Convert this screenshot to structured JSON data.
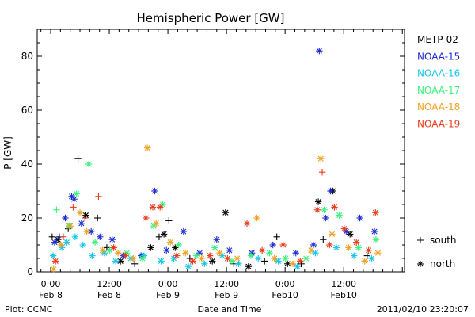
{
  "chart_data": {
    "type": "scatter",
    "title": "Hemispheric Power [GW]",
    "xlabel": "Date and Time",
    "ylabel": "P [GW]",
    "ylim": [
      0,
      90
    ],
    "yticks": [
      0,
      20,
      40,
      60,
      80
    ],
    "xlim_hours": [
      0,
      60
    ],
    "xticks": [
      {
        "h": 0,
        "line1": "0:00",
        "line2": "Feb 8"
      },
      {
        "h": 12,
        "line1": "12:00",
        "line2": "Feb 8"
      },
      {
        "h": 24,
        "line1": "0:00",
        "line2": "Feb 9"
      },
      {
        "h": 36,
        "line1": "12:00",
        "line2": "Feb 9"
      },
      {
        "h": 48,
        "line1": "0:00",
        "line2": "Feb10"
      },
      {
        "h": 60,
        "line1": "12:00",
        "line2": "Feb10"
      }
    ],
    "grid": false,
    "legend": "right",
    "markers": {
      "south": "+",
      "north": "*"
    },
    "marker_legend": [
      {
        "symbol": "+",
        "label": "south"
      },
      {
        "symbol": "*",
        "label": "north"
      }
    ],
    "series": [
      {
        "name": "METP-02",
        "color": "#000000",
        "points": [
          {
            "x": 0.3,
            "y": 13,
            "h": "south"
          },
          {
            "x": 1.5,
            "y": 12,
            "h": "north"
          },
          {
            "x": 3.6,
            "y": 16,
            "h": "south"
          },
          {
            "x": 5.6,
            "y": 42,
            "h": "south"
          },
          {
            "x": 7.2,
            "y": 21,
            "h": "north"
          },
          {
            "x": 9.6,
            "y": 20,
            "h": "south"
          },
          {
            "x": 11.5,
            "y": 9,
            "h": "south"
          },
          {
            "x": 14.3,
            "y": 4,
            "h": "north"
          },
          {
            "x": 17.2,
            "y": 3,
            "h": "south"
          },
          {
            "x": 20.5,
            "y": 9,
            "h": "north"
          },
          {
            "x": 22.2,
            "y": 13,
            "h": "south"
          },
          {
            "x": 23.2,
            "y": 14,
            "h": "north"
          },
          {
            "x": 24.2,
            "y": 19,
            "h": "south"
          },
          {
            "x": 25.5,
            "y": 9,
            "h": "north"
          },
          {
            "x": 28.5,
            "y": 5,
            "h": "south"
          },
          {
            "x": 33.1,
            "y": 4,
            "h": "north"
          },
          {
            "x": 35.8,
            "y": 22,
            "h": "north"
          },
          {
            "x": 37.5,
            "y": 3,
            "h": "south"
          },
          {
            "x": 40.5,
            "y": 2,
            "h": "north"
          },
          {
            "x": 43.8,
            "y": 4,
            "h": "south"
          },
          {
            "x": 46.3,
            "y": 13,
            "h": "south"
          },
          {
            "x": 48.5,
            "y": 3,
            "h": "north"
          },
          {
            "x": 51.3,
            "y": 3,
            "h": "south"
          },
          {
            "x": 54.8,
            "y": 26,
            "h": "north"
          },
          {
            "x": 55.8,
            "y": 12,
            "h": "south"
          },
          {
            "x": 57.8,
            "y": 30,
            "h": "north"
          },
          {
            "x": 61.3,
            "y": 14,
            "h": "north"
          },
          {
            "x": 64.8,
            "y": 6,
            "h": "south"
          }
        ]
      },
      {
        "name": "NOAA-15",
        "color": "#1c2bd0",
        "points": [
          {
            "x": 0.8,
            "y": 11,
            "h": "north"
          },
          {
            "x": 1.8,
            "y": 13,
            "h": "south"
          },
          {
            "x": 3.0,
            "y": 20,
            "h": "north"
          },
          {
            "x": 4.3,
            "y": 28,
            "h": "north"
          },
          {
            "x": 4.8,
            "y": 27,
            "h": "north"
          },
          {
            "x": 6.3,
            "y": 18,
            "h": "north"
          },
          {
            "x": 8.3,
            "y": 15,
            "h": "north"
          },
          {
            "x": 10.1,
            "y": 13,
            "h": "north"
          },
          {
            "x": 12.6,
            "y": 12,
            "h": "north"
          },
          {
            "x": 14.8,
            "y": 6,
            "h": "north"
          },
          {
            "x": 18.5,
            "y": 6,
            "h": "north"
          },
          {
            "x": 21.3,
            "y": 30,
            "h": "north"
          },
          {
            "x": 23.7,
            "y": 8,
            "h": "north"
          },
          {
            "x": 27.2,
            "y": 15,
            "h": "north"
          },
          {
            "x": 30.5,
            "y": 7,
            "h": "north"
          },
          {
            "x": 34.0,
            "y": 12,
            "h": "north"
          },
          {
            "x": 36.6,
            "y": 8,
            "h": "north"
          },
          {
            "x": 41.2,
            "y": 7,
            "h": "north"
          },
          {
            "x": 45.5,
            "y": 10,
            "h": "north"
          },
          {
            "x": 50.2,
            "y": 7,
            "h": "north"
          },
          {
            "x": 53.8,
            "y": 10,
            "h": "north"
          },
          {
            "x": 55.0,
            "y": 82,
            "h": "north"
          },
          {
            "x": 56.3,
            "y": 20,
            "h": "north"
          },
          {
            "x": 57.3,
            "y": 30,
            "h": "north"
          },
          {
            "x": 60.5,
            "y": 15,
            "h": "north"
          },
          {
            "x": 63.3,
            "y": 20,
            "h": "north"
          },
          {
            "x": 66.3,
            "y": 15,
            "h": "north"
          }
        ]
      },
      {
        "name": "NOAA-16",
        "color": "#17c5e8",
        "points": [
          {
            "x": 0.5,
            "y": 6,
            "h": "north"
          },
          {
            "x": 2.3,
            "y": 9,
            "h": "north"
          },
          {
            "x": 3.3,
            "y": 11,
            "h": "north"
          },
          {
            "x": 5.0,
            "y": 13,
            "h": "north"
          },
          {
            "x": 6.6,
            "y": 10,
            "h": "north"
          },
          {
            "x": 8.5,
            "y": 6,
            "h": "north"
          },
          {
            "x": 11.0,
            "y": 7,
            "h": "north"
          },
          {
            "x": 13.3,
            "y": 4,
            "h": "north"
          },
          {
            "x": 16.4,
            "y": 5,
            "h": "north"
          },
          {
            "x": 19.1,
            "y": 6,
            "h": "north"
          },
          {
            "x": 22.6,
            "y": 4,
            "h": "north"
          },
          {
            "x": 25.2,
            "y": 5,
            "h": "north"
          },
          {
            "x": 28.2,
            "y": 2,
            "h": "north"
          },
          {
            "x": 31.5,
            "y": 3,
            "h": "north"
          },
          {
            "x": 35.1,
            "y": 6,
            "h": "north"
          },
          {
            "x": 38.5,
            "y": 3,
            "h": "north"
          },
          {
            "x": 42.5,
            "y": 5,
            "h": "north"
          },
          {
            "x": 46.6,
            "y": 4,
            "h": "north"
          },
          {
            "x": 50.5,
            "y": 2,
            "h": "north"
          },
          {
            "x": 54.2,
            "y": 7,
            "h": "north"
          },
          {
            "x": 58.5,
            "y": 9,
            "h": "north"
          },
          {
            "x": 62.1,
            "y": 6,
            "h": "north"
          },
          {
            "x": 65.7,
            "y": 5,
            "h": "north"
          }
        ]
      },
      {
        "name": "NOAA-17",
        "color": "#3af07a",
        "points": [
          {
            "x": 1.2,
            "y": 23,
            "h": "south"
          },
          {
            "x": 3.8,
            "y": 17,
            "h": "north"
          },
          {
            "x": 5.3,
            "y": 29,
            "h": "north"
          },
          {
            "x": 7.8,
            "y": 40,
            "h": "north"
          },
          {
            "x": 9.1,
            "y": 11,
            "h": "north"
          },
          {
            "x": 12.1,
            "y": 8,
            "h": "north"
          },
          {
            "x": 15.6,
            "y": 7,
            "h": "north"
          },
          {
            "x": 18.8,
            "y": 5,
            "h": "north"
          },
          {
            "x": 21.1,
            "y": 17,
            "h": "north"
          },
          {
            "x": 22.9,
            "y": 25,
            "h": "north"
          },
          {
            "x": 26.2,
            "y": 10,
            "h": "north"
          },
          {
            "x": 29.8,
            "y": 6,
            "h": "north"
          },
          {
            "x": 33.6,
            "y": 9,
            "h": "north"
          },
          {
            "x": 37.1,
            "y": 4,
            "h": "north"
          },
          {
            "x": 41.0,
            "y": 6,
            "h": "north"
          },
          {
            "x": 44.8,
            "y": 7,
            "h": "north"
          },
          {
            "x": 48.1,
            "y": 5,
            "h": "north"
          },
          {
            "x": 52.3,
            "y": 5,
            "h": "north"
          },
          {
            "x": 56.0,
            "y": 23,
            "h": "north"
          },
          {
            "x": 59.1,
            "y": 21,
            "h": "north"
          },
          {
            "x": 63.0,
            "y": 9,
            "h": "north"
          },
          {
            "x": 66.6,
            "y": 12,
            "h": "north"
          }
        ]
      },
      {
        "name": "NOAA-18",
        "color": "#f0a020",
        "points": [
          {
            "x": 0.6,
            "y": 1,
            "h": "north"
          },
          {
            "x": 2.1,
            "y": 10,
            "h": "north"
          },
          {
            "x": 4.0,
            "y": 17,
            "h": "north"
          },
          {
            "x": 6.0,
            "y": 22,
            "h": "north"
          },
          {
            "x": 7.4,
            "y": 15,
            "h": "north"
          },
          {
            "x": 10.6,
            "y": 8,
            "h": "north"
          },
          {
            "x": 13.8,
            "y": 7,
            "h": "north"
          },
          {
            "x": 16.9,
            "y": 5,
            "h": "north"
          },
          {
            "x": 19.8,
            "y": 46,
            "h": "north"
          },
          {
            "x": 21.6,
            "y": 18,
            "h": "north"
          },
          {
            "x": 24.5,
            "y": 11,
            "h": "north"
          },
          {
            "x": 27.6,
            "y": 7,
            "h": "north"
          },
          {
            "x": 30.9,
            "y": 5,
            "h": "north"
          },
          {
            "x": 34.6,
            "y": 7,
            "h": "north"
          },
          {
            "x": 38.2,
            "y": 5,
            "h": "north"
          },
          {
            "x": 42.2,
            "y": 20,
            "h": "north"
          },
          {
            "x": 45.8,
            "y": 5,
            "h": "north"
          },
          {
            "x": 49.6,
            "y": 3,
            "h": "north"
          },
          {
            "x": 53.3,
            "y": 8,
            "h": "north"
          },
          {
            "x": 55.3,
            "y": 42,
            "h": "north"
          },
          {
            "x": 57.6,
            "y": 14,
            "h": "north"
          },
          {
            "x": 61.0,
            "y": 9,
            "h": "north"
          },
          {
            "x": 64.3,
            "y": 4,
            "h": "north"
          },
          {
            "x": 67.0,
            "y": 7,
            "h": "north"
          }
        ]
      },
      {
        "name": "NOAA-19",
        "color": "#e83a1c",
        "points": [
          {
            "x": 1.0,
            "y": 4,
            "h": "north"
          },
          {
            "x": 2.6,
            "y": 13,
            "h": "south"
          },
          {
            "x": 4.6,
            "y": 24,
            "h": "south"
          },
          {
            "x": 7.0,
            "y": 20,
            "h": "south"
          },
          {
            "x": 9.8,
            "y": 28,
            "h": "south"
          },
          {
            "x": 12.9,
            "y": 9,
            "h": "north"
          },
          {
            "x": 15.3,
            "y": 6,
            "h": "north"
          },
          {
            "x": 19.5,
            "y": 20,
            "h": "north"
          },
          {
            "x": 20.9,
            "y": 24,
            "h": "north"
          },
          {
            "x": 22.4,
            "y": 24,
            "h": "north"
          },
          {
            "x": 25.8,
            "y": 6,
            "h": "north"
          },
          {
            "x": 29.1,
            "y": 4,
            "h": "north"
          },
          {
            "x": 32.6,
            "y": 6,
            "h": "north"
          },
          {
            "x": 36.2,
            "y": 5,
            "h": "north"
          },
          {
            "x": 40.2,
            "y": 18,
            "h": "north"
          },
          {
            "x": 43.3,
            "y": 8,
            "h": "north"
          },
          {
            "x": 47.6,
            "y": 10,
            "h": "north"
          },
          {
            "x": 51.1,
            "y": 4,
            "h": "north"
          },
          {
            "x": 54.6,
            "y": 23,
            "h": "north"
          },
          {
            "x": 55.6,
            "y": 37,
            "h": "south"
          },
          {
            "x": 57.1,
            "y": 10,
            "h": "north"
          },
          {
            "x": 58.1,
            "y": 24,
            "h": "north"
          },
          {
            "x": 60.1,
            "y": 16,
            "h": "north"
          },
          {
            "x": 62.6,
            "y": 11,
            "h": "north"
          },
          {
            "x": 65.1,
            "y": 8,
            "h": "north"
          },
          {
            "x": 66.5,
            "y": 22,
            "h": "north"
          }
        ]
      }
    ]
  },
  "footer": {
    "left": "Plot: CCMC",
    "right": "2011/02/10 23:20:07"
  }
}
